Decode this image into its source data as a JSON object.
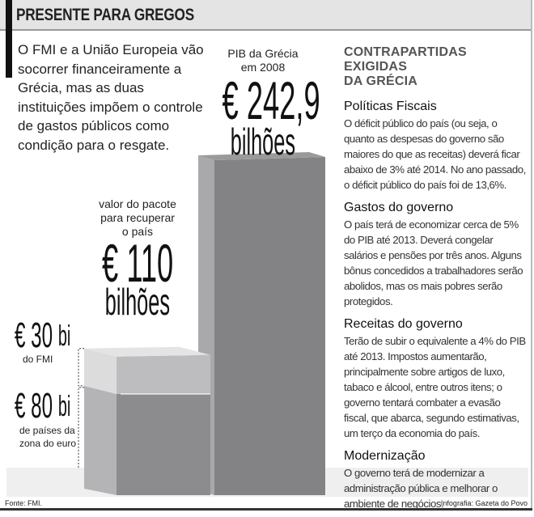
{
  "header": {
    "title": "PRESENTE PARA GREGOS"
  },
  "intro": "O FMI e a União Europeia vão socorrer financeiramente a Grécia, mas as duas instituições impõem o controle de gastos públicos como condição para o resgate.",
  "pib": {
    "label_line1": "PIB da Grécia",
    "label_line2": "em 2008",
    "value": "€ 242,9",
    "unit": "bilhões"
  },
  "pacote": {
    "label_line1": "valor do pacote",
    "label_line2": "para recuperar",
    "label_line3": "o país",
    "value": "€ 110",
    "unit": "bilhões"
  },
  "fmi": {
    "value": "€ 30",
    "unit": "bi",
    "label": "do FMI"
  },
  "euro": {
    "value": "€ 80",
    "unit": "bi",
    "label_line1": "de países da",
    "label_line2": "zona do euro"
  },
  "right": {
    "heading_line1": "CONTRAPARTIDAS EXIGIDAS",
    "heading_line2": "DA GRÉCIA",
    "sections": [
      {
        "title": "Políticas Fiscais",
        "body": "O déficit público do país (ou seja, o quanto as despesas do governo são maiores do que as receitas) deverá ficar abaixo de 3% até 2014. No ano passado, o déficit público do país foi de 13,6%."
      },
      {
        "title": "Gastos do governo",
        "body": "O país terá de economizar cerca de 5% do PIB até 2013. Deverá congelar salários e pensões por três anos. Alguns bônus concedidos a trabalhadores serão abolidos, mas os mais pobres serão protegidos."
      },
      {
        "title": "Receitas do governo",
        "body": "Terão de subir o equivalente a 4% do PIB até 2013. Impostos aumentarão, principalmente sobre artigos de luxo, tabaco e álcool, entre outros itens; o governo tentará combater a evasão fiscal, que abarca, segundo estimativas, um terço da economia do país."
      },
      {
        "title": "Modernização",
        "body": "O governo terá de modernizar a administração pública e melhorar o ambiente de negócios."
      }
    ]
  },
  "footer": {
    "source": "Fonte: FMI.",
    "credit": "Infografia: Gazeta do Povo"
  },
  "chart_data": {
    "type": "bar",
    "unit": "bilhões de euros",
    "categories": [
      "valor do pacote para recuperar o país",
      "PIB da Grécia em 2008"
    ],
    "series": [
      {
        "name": "de países da zona do euro",
        "values": [
          80,
          0
        ]
      },
      {
        "name": "do FMI",
        "values": [
          30,
          0
        ]
      },
      {
        "name": "PIB da Grécia em 2008",
        "values": [
          0,
          242.9
        ]
      }
    ],
    "colors": {
      "front_dark": "#8c8c8e",
      "side_dark": "#b4b4b6",
      "front_light": "#bdbdbf",
      "side_light": "#dcdcdc",
      "floor": "#efefef"
    }
  }
}
